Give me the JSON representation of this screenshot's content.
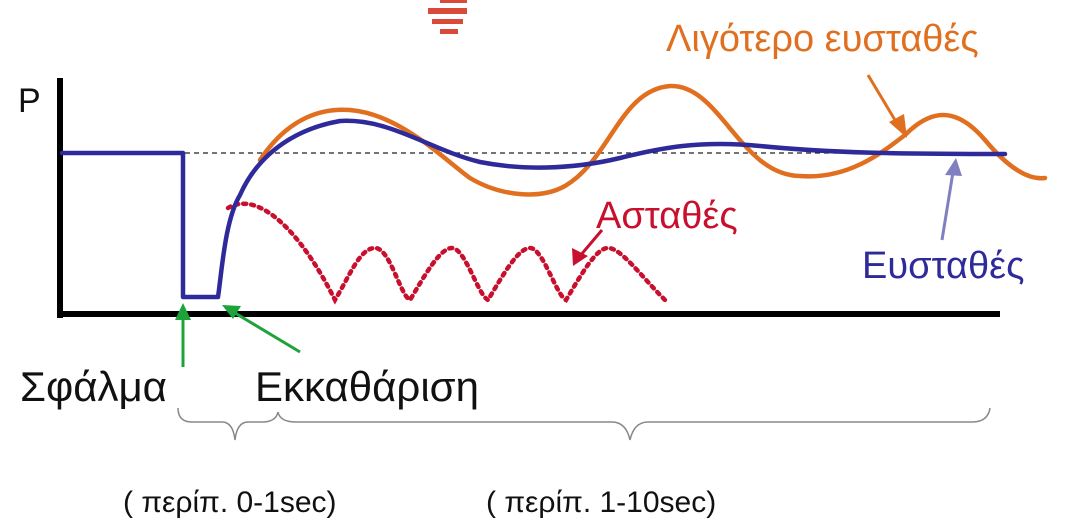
{
  "labels": {
    "axis_p": "P",
    "less_stable": "Λιγότερο ευσταθές",
    "unstable": "Ασταθές",
    "stable": "Ευσταθές",
    "fault": "Σφάλμα",
    "clearing": "Εκκαθάριση",
    "period_short": "( περίπ. 0-1sec)",
    "period_long": "( περίπ. 1-10sec)"
  },
  "icons": {
    "ground": "ground-symbol-icon"
  },
  "colors": {
    "stable": "#2e2a9a",
    "less_stable": "#e07020",
    "unstable": "#c8102e",
    "fault_arrow": "#1ea33a",
    "stable_arrow": "#8080c0",
    "axis": "#000000",
    "reference": "#222222"
  }
}
